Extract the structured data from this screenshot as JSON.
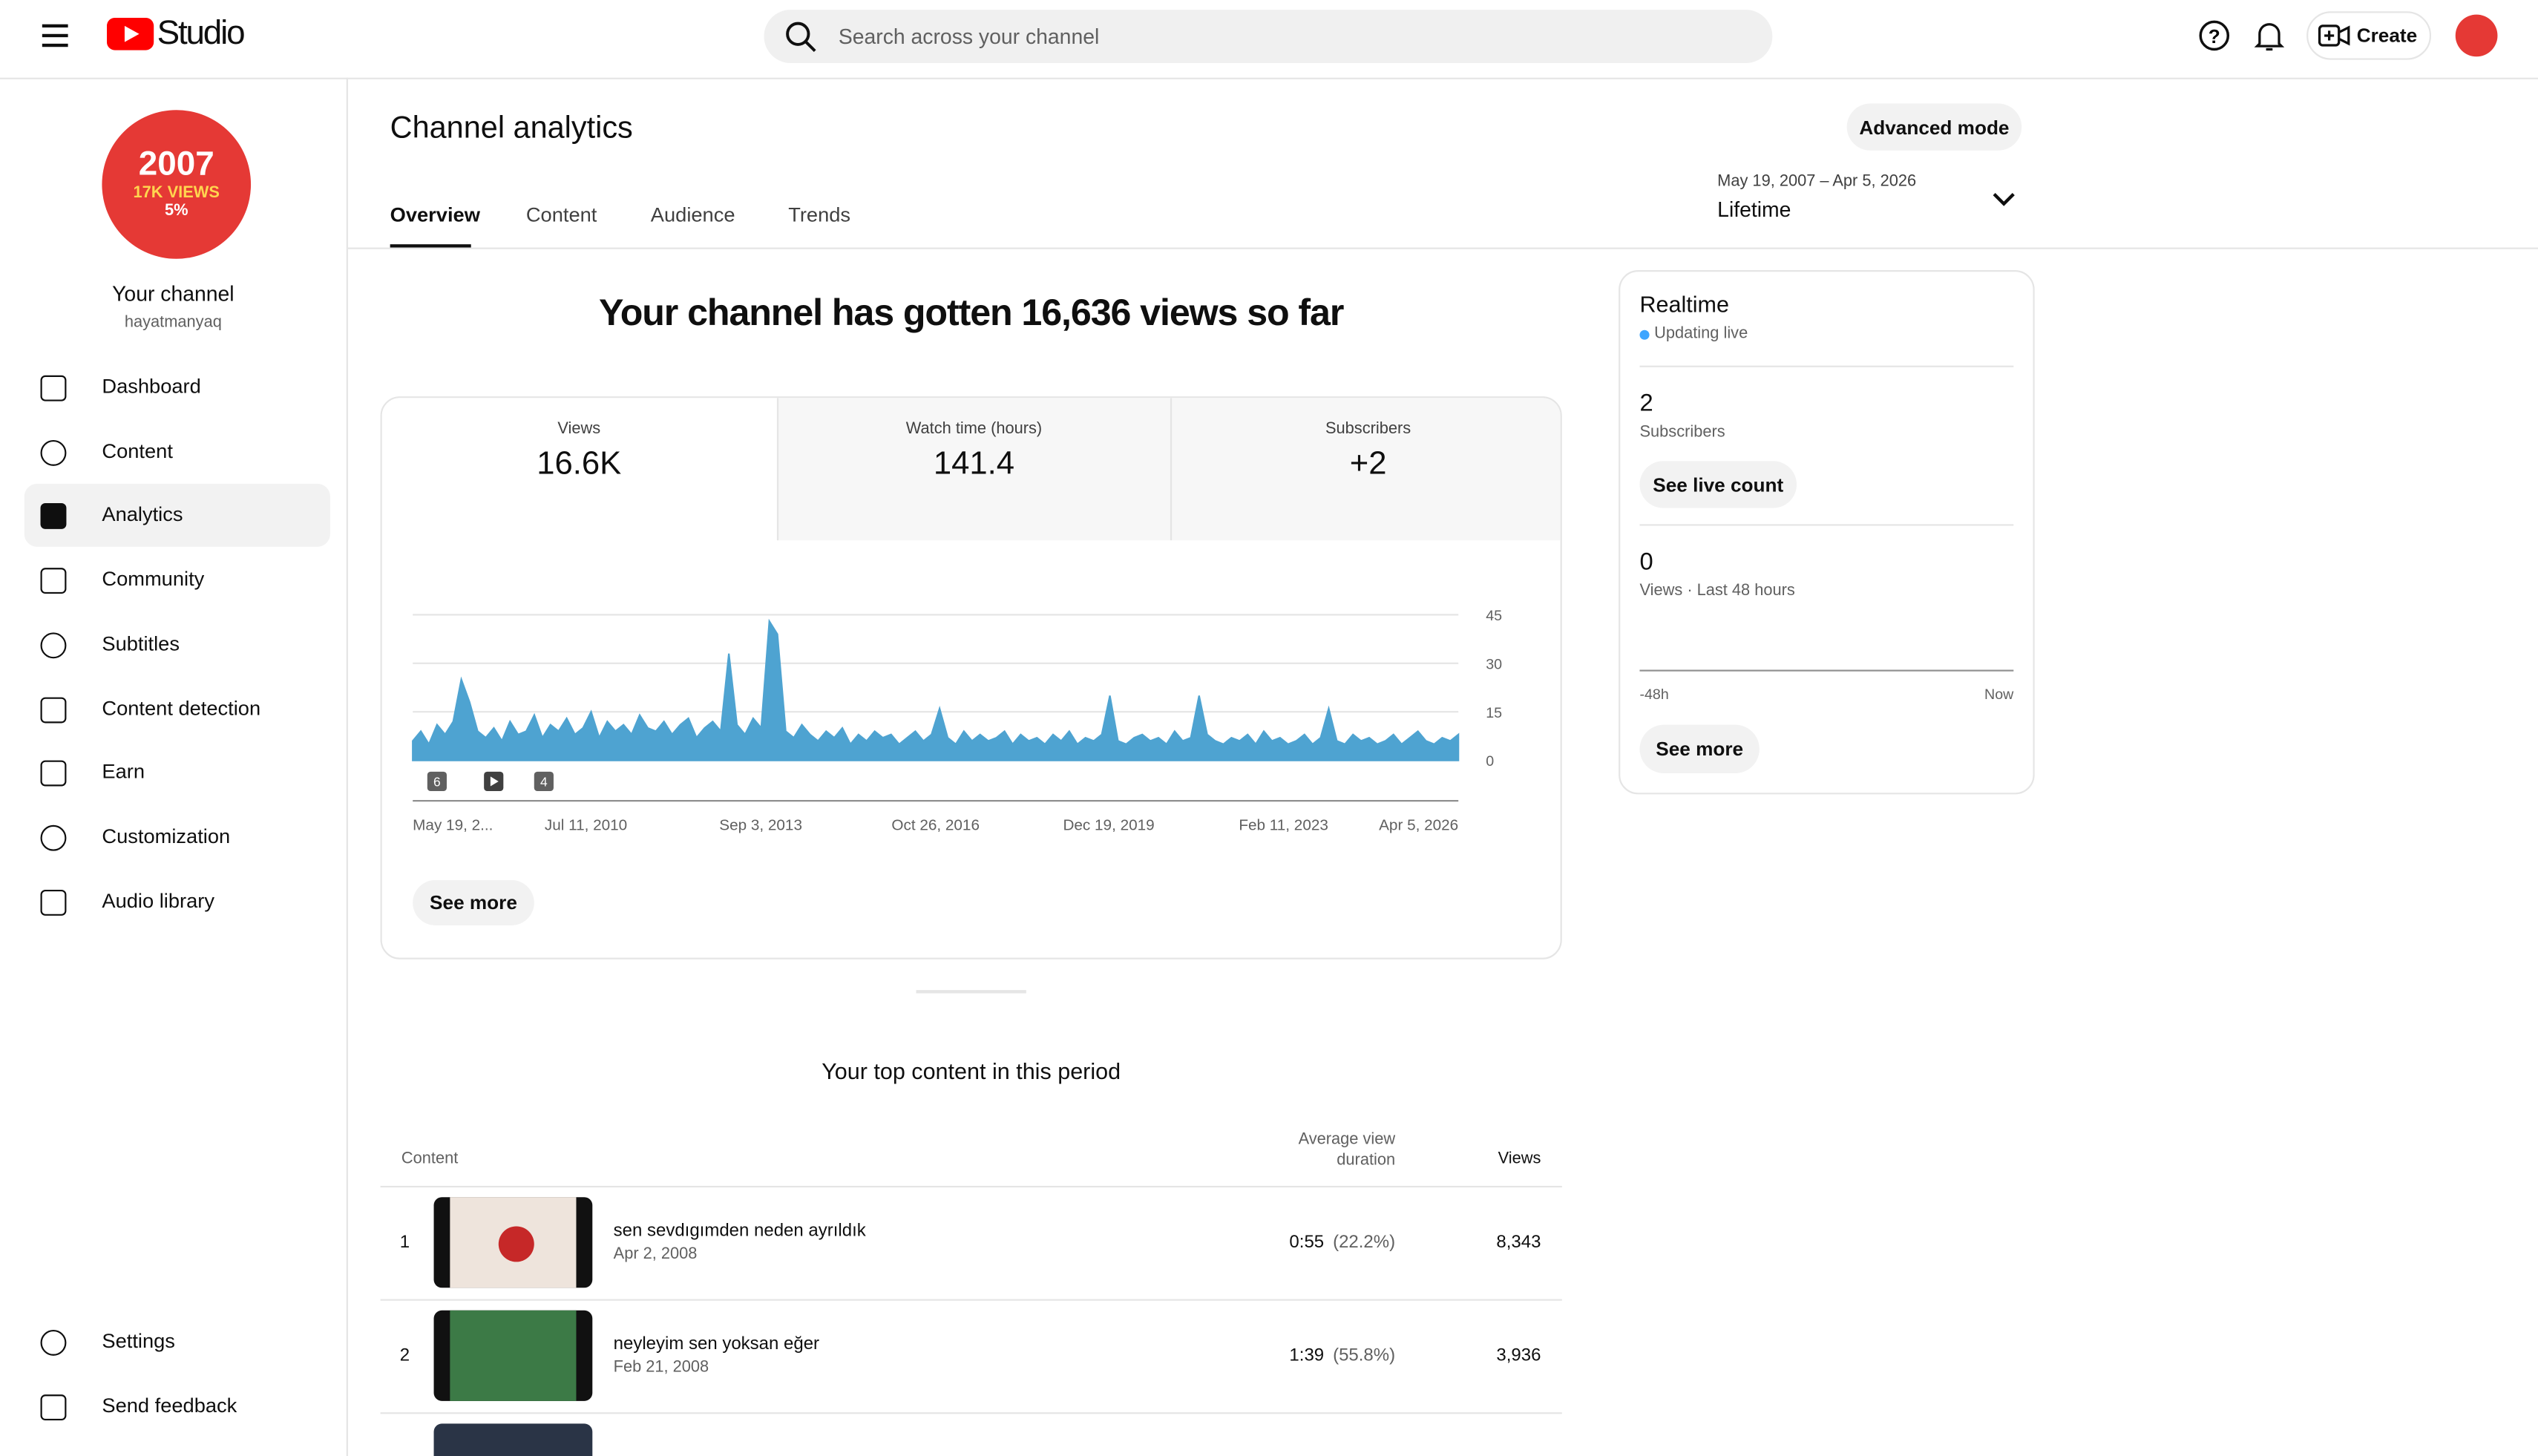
{
  "header": {
    "logo": "Studio",
    "search_placeholder": "Search across your channel",
    "create": "Create"
  },
  "sidebar": {
    "avatar_lines": [
      "2007",
      "17K VIEWS",
      "5%"
    ],
    "channel_name": "Your channel",
    "handle": "hayatmanyaq",
    "nav": [
      "Dashboard",
      "Content",
      "Analytics",
      "Community",
      "Subtitles",
      "Content detection",
      "Earn",
      "Customization",
      "Audio library"
    ],
    "footer": [
      "Settings",
      "Send feedback"
    ]
  },
  "page": {
    "title": "Channel analytics",
    "advanced": "Advanced mode",
    "tabs": [
      "Overview",
      "Content",
      "Audience",
      "Trends"
    ],
    "date_range": "May 19, 2007 – Apr 5, 2026",
    "period": "Lifetime",
    "headline": "Your channel has gotten 16,636 views so far",
    "see_more": "See more"
  },
  "metrics": [
    {
      "label": "Views",
      "value": "16.6K"
    },
    {
      "label": "Watch time (hours)",
      "value": "141.4"
    },
    {
      "label": "Subscribers",
      "value": "+2"
    }
  ],
  "chart_data": {
    "type": "area",
    "color": "#4ea3d1",
    "x_labels": [
      "May 19, 2...",
      "Jul 11, 2010",
      "Sep 3, 2013",
      "Oct 26, 2016",
      "Dec 19, 2019",
      "Feb 11, 2023",
      "Apr 5, 2026"
    ],
    "values": [
      6,
      9,
      5,
      11,
      8,
      12,
      25,
      18,
      9,
      7,
      10,
      6,
      12,
      8,
      9,
      14,
      7,
      11,
      9,
      13,
      8,
      10,
      15,
      7,
      12,
      9,
      11,
      8,
      14,
      10,
      9,
      12,
      8,
      11,
      13,
      7,
      10,
      12,
      9,
      33,
      11,
      8,
      13,
      10,
      43,
      39,
      9,
      7,
      11,
      8,
      6,
      9,
      7,
      10,
      5,
      8,
      6,
      9,
      7,
      8,
      5,
      7,
      9,
      6,
      8,
      16,
      7,
      5,
      9,
      6,
      8,
      6,
      7,
      9,
      5,
      8,
      6,
      7,
      5,
      8,
      6,
      9,
      5,
      7,
      6,
      8,
      20,
      6,
      5,
      7,
      8,
      6,
      7,
      5,
      9,
      6,
      7,
      20,
      8,
      6,
      5,
      7,
      6,
      8,
      5,
      9,
      6,
      7,
      5,
      6,
      8,
      5,
      7,
      16,
      6,
      5,
      8,
      6,
      7,
      5,
      6,
      8,
      5,
      7,
      9,
      6,
      5,
      7,
      6,
      8
    ],
    "ylim": [
      0,
      45
    ],
    "yticks": [
      0,
      15,
      30,
      45
    ],
    "grid": true,
    "markers": [
      "6",
      "4"
    ]
  },
  "realtime": {
    "title": "Realtime",
    "status": "Updating live",
    "subscribers": "2",
    "subscribers_label": "Subscribers",
    "live_count": "See live count",
    "views": "0",
    "views_label": "Views · Last 48 hours",
    "axis_start": "-48h",
    "axis_end": "Now",
    "see_more": "See more"
  },
  "top_content": {
    "title": "Your top content in this period",
    "columns": [
      "Content",
      "Average view duration",
      "Views"
    ],
    "rows": [
      {
        "rank": "1",
        "title": "sen sevdıgımden neden ayrıldık",
        "date": "Apr 2, 2008",
        "duration": "0:55",
        "percent": "(22.2%)",
        "views": "8,343"
      },
      {
        "rank": "2",
        "title": "neyleyim sen yoksan eğer",
        "date": "Feb 21, 2008",
        "duration": "1:39",
        "percent": "(55.8%)",
        "views": "3,936"
      }
    ]
  }
}
